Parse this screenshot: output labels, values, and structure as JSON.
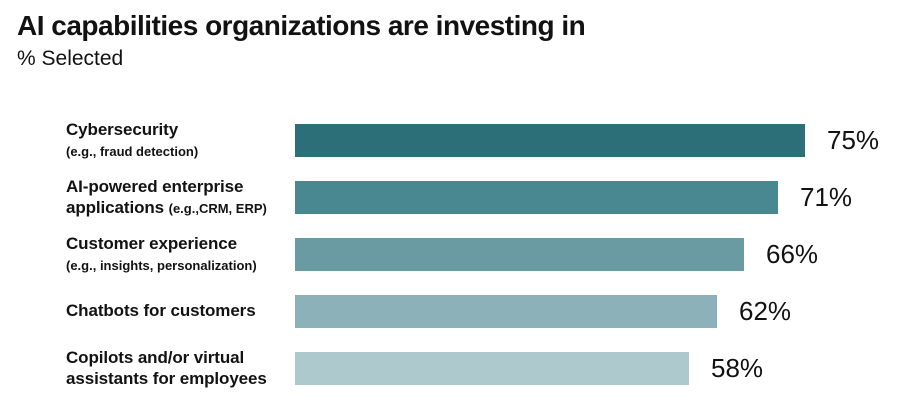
{
  "page": {
    "background": "#ffffff",
    "text_color": "#121212"
  },
  "header": {
    "title": "AI capabilities organizations are investing in",
    "subtitle": "% Selected"
  },
  "chart_data": {
    "type": "bar",
    "orientation": "horizontal",
    "title": "AI capabilities organizations are investing in",
    "subtitle": "% Selected",
    "unit": "%",
    "xlim": [
      0,
      80
    ],
    "grid": false,
    "legend": false,
    "value_labels_position": "right-of-bar",
    "categories": [
      "Cybersecurity (e.g., fraud detection)",
      "AI-powered enterprise applications (e.g.,CRM, ERP)",
      "Customer experience (e.g., insights, personalization)",
      "Chatbots for customers",
      "Copilots and/or virtual assistants for employees"
    ],
    "values": [
      75,
      71,
      66,
      62,
      58
    ],
    "bar_colors": [
      "#2c6f78",
      "#4a8891",
      "#6b9ba2",
      "#8cb1b9",
      "#aec9cd"
    ],
    "bars": [
      {
        "value": 75,
        "display_value": "75%",
        "color": "#2c6f78",
        "label_lines": [
          [
            {
              "text": "Cybersecurity",
              "small": false
            }
          ],
          [
            {
              "text": "(e.g., fraud detection)",
              "small": true
            }
          ]
        ]
      },
      {
        "value": 71,
        "display_value": "71%",
        "color": "#4a8891",
        "label_lines": [
          [
            {
              "text": "AI-powered enterprise",
              "small": false
            }
          ],
          [
            {
              "text": "applications ",
              "small": false
            },
            {
              "text": "(e.g.,CRM, ERP)",
              "small": true
            }
          ]
        ]
      },
      {
        "value": 66,
        "display_value": "66%",
        "color": "#6b9ba2",
        "label_lines": [
          [
            {
              "text": "Customer experience",
              "small": false
            }
          ],
          [
            {
              "text": "(e.g., insights, personalization)",
              "small": true
            }
          ]
        ]
      },
      {
        "value": 62,
        "display_value": "62%",
        "color": "#8cb1b9",
        "label_lines": [
          [
            {
              "text": "Chatbots for customers",
              "small": false
            }
          ]
        ]
      },
      {
        "value": 58,
        "display_value": "58%",
        "color": "#aec9cd",
        "label_lines": [
          [
            {
              "text": "Copilots and/or virtual",
              "small": false
            }
          ],
          [
            {
              "text": "assistants for employees",
              "small": false
            }
          ]
        ]
      }
    ]
  }
}
